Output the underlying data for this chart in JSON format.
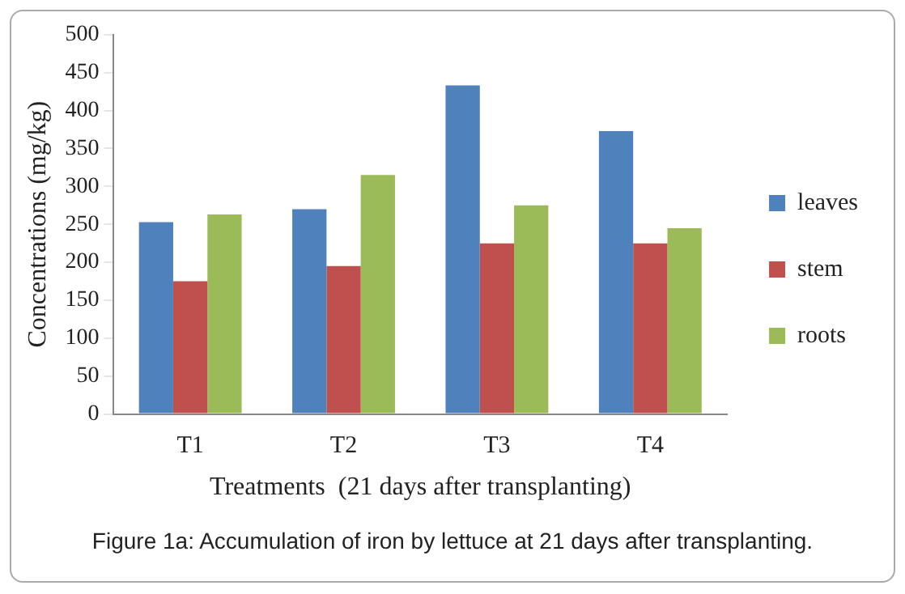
{
  "chart_data": {
    "type": "bar",
    "xlabel": "Treatments  (21 days after transplanting)",
    "ylabel": "Concentrations (mg/kg)",
    "categories": [
      "T1",
      "T2",
      "T3",
      "T4"
    ],
    "series": [
      {
        "name": "leaves",
        "color": "#4f81bd",
        "values": [
          253,
          270,
          433,
          373
        ]
      },
      {
        "name": "stem",
        "color": "#c0504d",
        "values": [
          175,
          195,
          225,
          225
        ]
      },
      {
        "name": "roots",
        "color": "#9bbb59",
        "values": [
          263,
          315,
          275,
          245
        ]
      }
    ],
    "ylim": [
      0,
      500
    ],
    "yticks": [
      0,
      50,
      100,
      150,
      200,
      250,
      300,
      350,
      400,
      450,
      500
    ],
    "grid": false,
    "legend": "right",
    "annotations": [
      "Figure 1a: Accumulation of iron by lettuce at 21 days after transplanting."
    ]
  }
}
